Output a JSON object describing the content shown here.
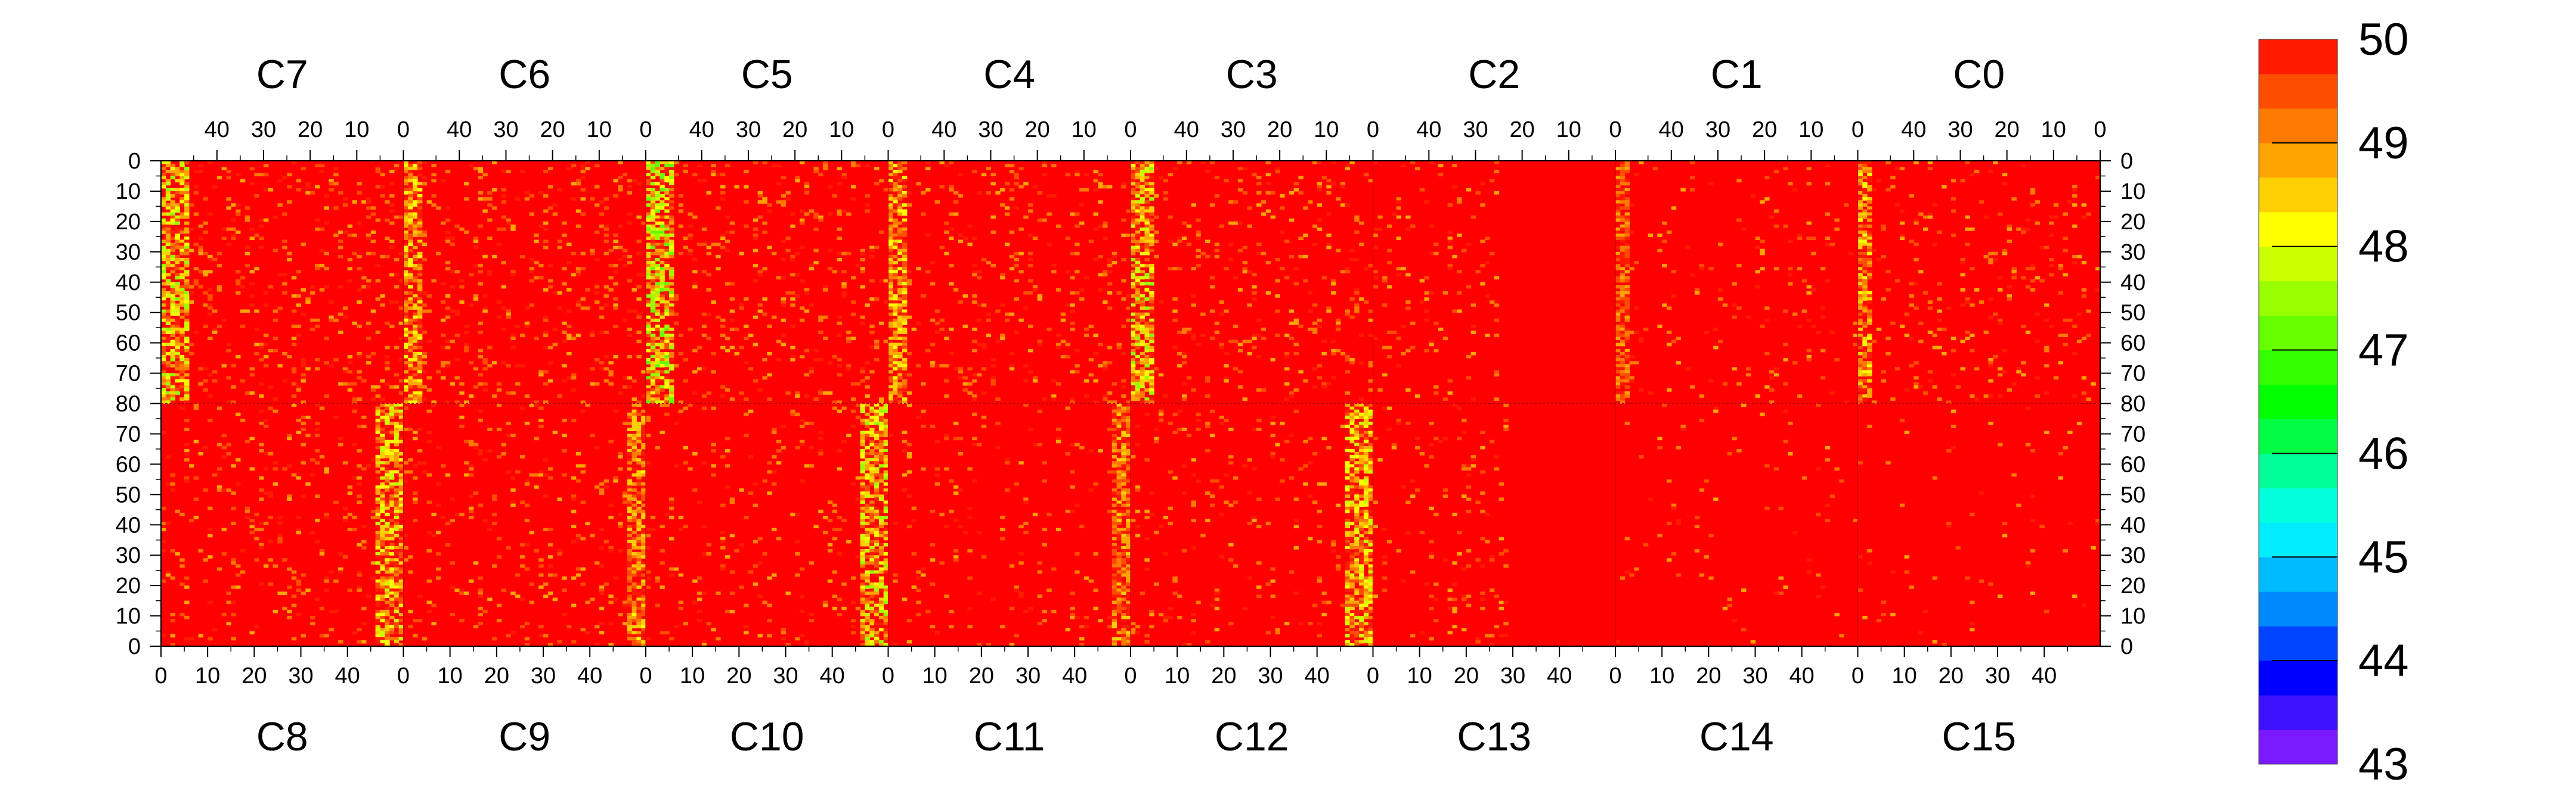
{
  "chart_data": {
    "type": "heatmap",
    "title": "",
    "xlabel": "",
    "ylabel": "",
    "z_range": [
      43,
      50
    ],
    "colorbar": {
      "ticks": [
        43,
        44,
        45,
        46,
        47,
        48,
        49,
        50
      ],
      "tick_labels": [
        "43",
        "44",
        "45",
        "46",
        "47",
        "48",
        "49",
        "50"
      ],
      "colors": [
        "#7a19ff",
        "#3f10ff",
        "#0000ff",
        "#0044ff",
        "#0088ff",
        "#00bbff",
        "#00eeff",
        "#00ffdd",
        "#00ff99",
        "#00ff44",
        "#00ff00",
        "#33ff00",
        "#66ff00",
        "#99ff00",
        "#ccff00",
        "#ffff00",
        "#ffd000",
        "#ffa500",
        "#ff7a00",
        "#ff4d00",
        "#ff1a00"
      ]
    },
    "top_row": {
      "chips": [
        "C7",
        "C6",
        "C5",
        "C4",
        "C3",
        "C2",
        "C1",
        "C0"
      ],
      "column_ticks": [
        "40",
        "30",
        "20",
        "10",
        "0"
      ],
      "row_ticks": [
        "0",
        "10",
        "20",
        "30",
        "40",
        "50",
        "60",
        "70",
        "80"
      ]
    },
    "bottom_row": {
      "chips": [
        "C8",
        "C9",
        "C10",
        "C11",
        "C12",
        "C13",
        "C14",
        "C15"
      ],
      "column_ticks": [
        "0",
        "10",
        "20",
        "30",
        "40"
      ],
      "row_ticks": [
        "70",
        "60",
        "50",
        "40",
        "30",
        "20",
        "10",
        "0"
      ]
    },
    "chip_columns": 52,
    "chip_rows": 80,
    "typical_value": 49.8,
    "low_value_bands": [
      {
        "chip": "C7",
        "columns": "0-5",
        "min_value": 47.5
      },
      {
        "chip": "C8",
        "columns": "46-51",
        "min_value": 47.8
      },
      {
        "chip": "C6",
        "columns": "0-3",
        "min_value": 48.0
      },
      {
        "chip": "C9",
        "columns": "48-51",
        "min_value": 48.3
      },
      {
        "chip": "C5",
        "columns": "0-5",
        "min_value": 47.0
      },
      {
        "chip": "C10",
        "columns": "46-51",
        "min_value": 47.5
      },
      {
        "chip": "C4",
        "columns": "0-3",
        "min_value": 48.0
      },
      {
        "chip": "C11",
        "columns": "48-51",
        "min_value": 48.5
      },
      {
        "chip": "C3",
        "columns": "0-4",
        "min_value": 47.5
      },
      {
        "chip": "C12",
        "columns": "46-51",
        "min_value": 47.8
      },
      {
        "chip": "C1",
        "columns": "0-2",
        "min_value": 48.8
      },
      {
        "chip": "C0",
        "columns": "0-2",
        "min_value": 48.2
      }
    ]
  },
  "colors": {
    "saturated": "#ff0000",
    "frame": "#000000",
    "background": "#ffffff"
  }
}
